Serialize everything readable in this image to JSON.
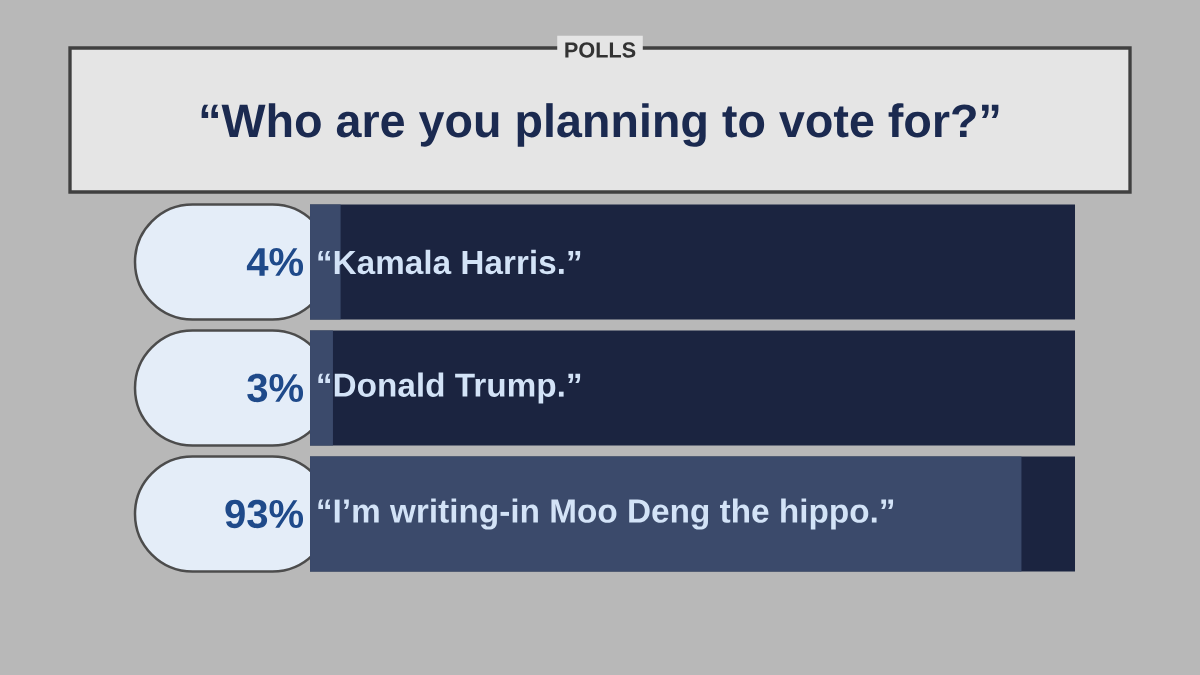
{
  "chart_data": {
    "type": "bar",
    "orientation": "horizontal",
    "subtitle": "POLLS",
    "title": "“Who are you planning to vote for?”",
    "categories": [
      "“Kamala Harris.”",
      "“Donald Trump.”",
      "“I’m writing-in Moo Deng the hippo.”"
    ],
    "values": [
      4,
      3,
      93
    ],
    "value_labels": [
      "4%",
      "3%",
      "93%"
    ],
    "color": "#3b4a6b",
    "xlim": [
      0,
      100
    ]
  }
}
